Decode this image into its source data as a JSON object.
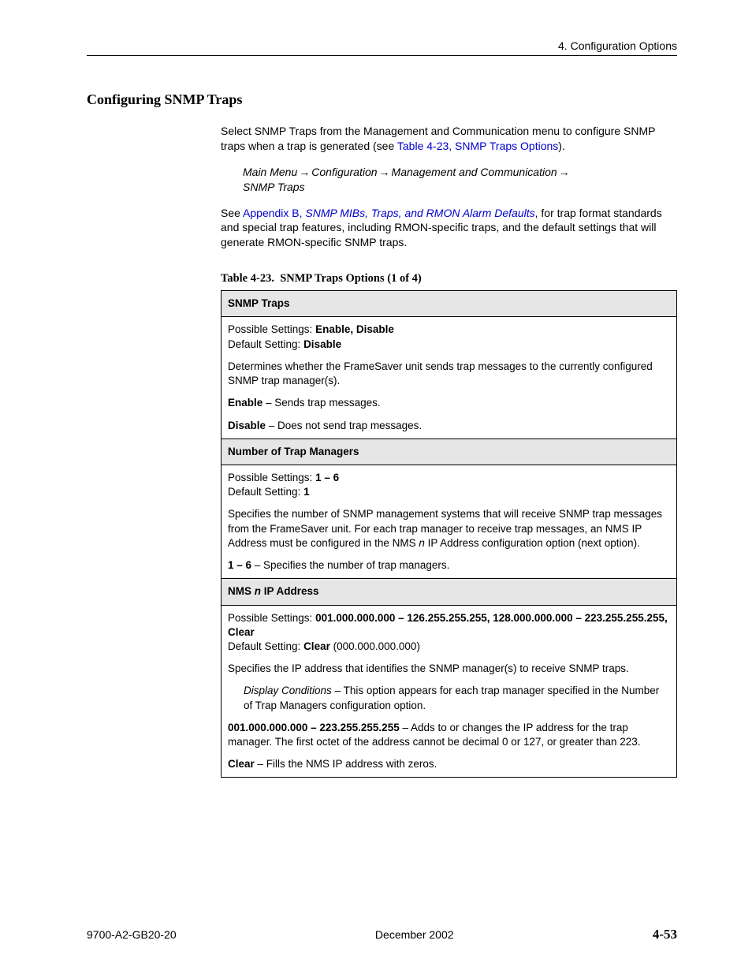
{
  "header": {
    "chapter": "4. Configuration Options"
  },
  "section": {
    "title": "Configuring SNMP Traps"
  },
  "intro": {
    "para1_a": "Select SNMP Traps from the Management and Communication menu to configure SNMP traps when a trap is generated (see ",
    "para1_link": "Table 4-23, SNMP Traps Options",
    "para1_b": ")."
  },
  "navpath": {
    "seg1": "Main Menu",
    "seg2": "Configuration",
    "seg3": "Management and Communication",
    "seg4": "SNMP Traps"
  },
  "appendix": {
    "pre": "See ",
    "link_a": "Appendix B, ",
    "link_b": "SNMP MIBs, Traps, and RMON Alarm Defaults",
    "post": ", for trap format standards and special trap features, including RMON-specific traps, and the default settings that will generate RMON-specific SNMP traps."
  },
  "table": {
    "caption_a": "Table 4-23.",
    "caption_b": "SNMP Traps Options (1 of 4)",
    "row1_header": "SNMP Traps",
    "row1": {
      "ps_label": "Possible Settings: ",
      "ps_value": "Enable, Disable",
      "ds_label": "Default Setting: ",
      "ds_value": "Disable"
    },
    "row1_desc": "Determines whether the FrameSaver unit sends trap messages to the currently configured SNMP trap manager(s).",
    "row1_enable_b": "Enable",
    "row1_enable_t": " – Sends trap messages.",
    "row1_disable_b": "Disable",
    "row1_disable_t": " – Does not send trap messages.",
    "row2_header": "Number of Trap Managers",
    "row2": {
      "ps_label": "Possible Settings: ",
      "ps_value": "1 – 6",
      "ds_label": "Default Setting: ",
      "ds_value": "1"
    },
    "row2_desc_a": "Specifies the number of SNMP management systems that will receive SNMP trap messages from the FrameSaver unit. For each trap manager to receive trap messages, an NMS IP Address must be configured in the NMS ",
    "row2_desc_n": "n",
    "row2_desc_b": " IP Address configuration option (next option).",
    "row2_range_b": "1 – 6",
    "row2_range_t": " – Specifies the number of trap managers.",
    "row3_header_a": "NMS ",
    "row3_header_n": "n",
    "row3_header_b": " IP Address",
    "row3": {
      "ps_label": "Possible Settings: ",
      "ps_value": "001.000.000.000 – 126.255.255.255, 128.000.000.000 – 223.255.255.255, Clear",
      "ds_label": "Default Setting: ",
      "ds_value_b": "Clear",
      "ds_value_t": " (000.000.000.000)"
    },
    "row3_desc": "Specifies the IP address that identifies the SNMP manager(s) to receive SNMP traps.",
    "row3_disp_i": "Display Conditions",
    "row3_disp_t": " – This option appears for each trap manager specified in the Number of Trap Managers configuration option.",
    "row3_range_b": "001.000.000.000 – 223.255.255.255",
    "row3_range_t": " – Adds to or changes the IP address for the trap manager. The first octet of the address cannot be decimal 0 or 127, or greater than 223.",
    "row3_clear_b": "Clear",
    "row3_clear_t": " – Fills the NMS IP address with zeros."
  },
  "footer": {
    "left": "9700-A2-GB20-20",
    "center": "December 2002",
    "right": "4-53"
  },
  "glyph": {
    "arrow": "→"
  }
}
